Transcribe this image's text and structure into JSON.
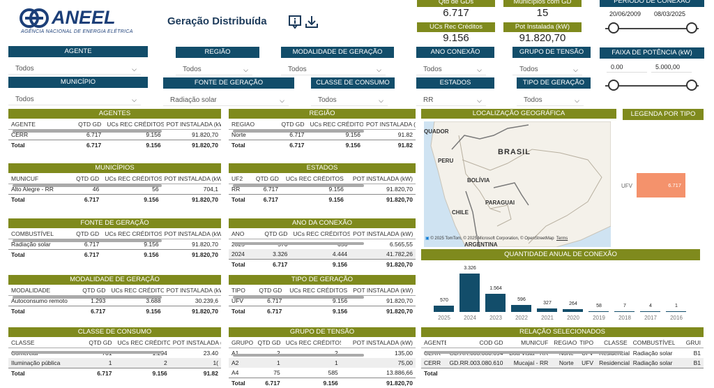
{
  "header": {
    "logo_text": "ANEEL",
    "logo_sub": "AGÊNCIA NACIONAL DE ENERGIA ELÉTRICA",
    "title": "Geração Distribuída"
  },
  "kpis": {
    "qtd_gds": {
      "label": "Qtd de GDs",
      "value": "6.717"
    },
    "municipios": {
      "label": "Municípios com GD",
      "value": "15"
    },
    "ucs": {
      "label": "UCs Rec Créditos",
      "value": "9.156"
    },
    "pot": {
      "label": "Pot Instalada (kW)",
      "value": "91.820,70"
    }
  },
  "periodo": {
    "label": "PERÍODO DE CONEXÃO",
    "start": "20/06/2009",
    "end": "08/03/2025"
  },
  "faixa": {
    "label": "FAIXA DE POTÊNCIA (kW)",
    "min": "0.00",
    "max": "5.000,00"
  },
  "filters": {
    "agente": {
      "label": "AGENTE",
      "value": "Todos"
    },
    "regiao": {
      "label": "REGIÃO",
      "value": "Todos"
    },
    "modalidade": {
      "label": "MODALIDADE DE GERAÇÃO",
      "value": "Todos"
    },
    "ano": {
      "label": "ANO CONEXÃO",
      "value": "Todos"
    },
    "grupo": {
      "label": "GRUPO DE TENSÃO",
      "value": "Todos"
    },
    "municipio": {
      "label": "MUNICÍPIO",
      "value": "Todos"
    },
    "fonte": {
      "label": "FONTE DE GERAÇÃO",
      "value": "Radiação solar"
    },
    "classe": {
      "label": "CLASSE DE CONSUMO",
      "value": "Todos"
    },
    "estados": {
      "label": "ESTADOS",
      "value": "RR"
    },
    "tipo": {
      "label": "TIPO DE GERAÇÃO",
      "value": "Todos"
    }
  },
  "tables": {
    "agentes": {
      "title": "AGENTES",
      "cols": [
        "AGENTE",
        "QTD GD",
        "UCs REC CRÉDITOS",
        "POT INSTALADA (kW)"
      ],
      "rows": [
        [
          "CERR",
          "6.717",
          "9.156",
          "91.820,70"
        ]
      ],
      "total": [
        "Total",
        "6.717",
        "9.156",
        "91.820,70"
      ]
    },
    "regiao": {
      "title": "REGIÃO",
      "cols": [
        "REGIAO",
        "QTD GD",
        "UCs REC CRÉDITOS",
        "POT INSTALADA (k"
      ],
      "rows": [
        [
          "Norte",
          "6.717",
          "9.156",
          "91.82"
        ]
      ],
      "total": [
        "Total",
        "6.717",
        "9.156",
        "91.82"
      ]
    },
    "municipios": {
      "title": "MUNICÍPIOS",
      "cols": [
        "MUNICUF",
        "QTD GD",
        "UCs REC CRÉDITOS",
        "POT INSTALADA (kW)"
      ],
      "rows": [
        [
          "Alto Alegre - RR",
          "46",
          "56",
          "704,1"
        ]
      ],
      "total": [
        "Total",
        "6.717",
        "9.156",
        "91.820,70"
      ]
    },
    "estados": {
      "title": "ESTADOS",
      "cols": [
        "UF2",
        "QTD GD",
        "UCs REC CRÉDITOS",
        "POT INSTALADA (kW)"
      ],
      "rows": [
        [
          "RR",
          "6.717",
          "9.156",
          "91.820,70"
        ]
      ],
      "total": [
        "Total",
        "6.717",
        "9.156",
        "91.820,70"
      ]
    },
    "fonte": {
      "title": "FONTE DE GERAÇÃO",
      "cols": [
        "COMBUSTÍVEL",
        "QTD GD",
        "UCs REC CRÉDITOS",
        "POT INSTALADA (kW)"
      ],
      "rows": [
        [
          "Radiação solar",
          "6.717",
          "9.156",
          "91.820,70"
        ]
      ],
      "total": [
        "Total",
        "6.717",
        "9.156",
        "91.820,70"
      ]
    },
    "ano": {
      "title": "ANO DA CONEXÃO",
      "cols": [
        "ANO",
        "QTD GD",
        "UCs REC CRÉDITOS",
        "POT INSTALADA (kW)"
      ],
      "rows": [
        [
          "2025",
          "570",
          "656",
          "6.565,55"
        ],
        [
          "2024",
          "3.326",
          "4.444",
          "41.782,26"
        ]
      ],
      "total": [
        "Total",
        "6.717",
        "9.156",
        "91.820,70"
      ]
    },
    "modalidade": {
      "title": "MODALIDADE DE GERAÇÃO",
      "cols": [
        "MODALIDADE",
        "QTD GD",
        "UCs REC CRÉDITOS",
        "POT INSTALADA (kW)"
      ],
      "rows": [
        [
          "Autoconsumo remoto",
          "1.293",
          "3.688",
          "30.239,6"
        ]
      ],
      "total": [
        "Total",
        "6.717",
        "9.156",
        "91.820,70"
      ]
    },
    "tipo": {
      "title": "TIPO DE GERAÇÃO",
      "cols": [
        "TIPO",
        "QTD GD",
        "UCs REC CRÉDITOS",
        "POT INSTALADA (kW)"
      ],
      "rows": [
        [
          "UFV",
          "6.717",
          "9.156",
          "91.820,70"
        ]
      ],
      "total": [
        "Total",
        "6.717",
        "9.156",
        "91.820,70"
      ]
    },
    "classe": {
      "title": "CLASSE DE CONSUMO",
      "cols": [
        "CLASSE",
        "QTD GD",
        "UCs REC CRÉDITOS",
        "POT INSTALADA (k"
      ],
      "rows": [
        [
          "Comercial",
          "701",
          "1.294",
          "23.40"
        ],
        [
          "Iluminação pública",
          "1",
          "2",
          "1("
        ]
      ],
      "total": [
        "Total",
        "6.717",
        "9.156",
        "91.82"
      ]
    },
    "grupo": {
      "title": "GRUPO DE TENSÃO",
      "cols": [
        "GRUPO",
        "QTD GD",
        "UCs REC CRÉDITOS",
        "POT INSTALADA (kW)"
      ],
      "rows": [
        [
          "A1",
          "2",
          "2",
          "135,00"
        ],
        [
          "A2",
          "1",
          "1",
          "75,00"
        ],
        [
          "A4",
          "75",
          "585",
          "13.886,66"
        ]
      ],
      "total": [
        "Total",
        "6.717",
        "9.156",
        "91.820,70"
      ]
    },
    "relacao": {
      "title": "RELAÇÃO SELECIONADOS",
      "cols": [
        "AGENTE",
        "COD GD",
        "MUNICUF",
        "REGIAO",
        "TIPO",
        "CLASSE",
        "COMBUSTÍVEL",
        "GRUI"
      ],
      "rows": [
        [
          "CERR",
          "GD.RR.003.080.694",
          "Boa Vista - RR",
          "Norte",
          "UFV",
          "Residencial",
          "Radiação solar",
          "B1"
        ],
        [
          "CERR",
          "GD.RR.003.080.610",
          "Mucajaí - RR",
          "Norte",
          "UFV",
          "Residencial",
          "Radiação solar",
          "B1"
        ]
      ],
      "total": [
        "Total",
        "",
        "",
        "",
        "",
        "",
        "",
        ""
      ]
    }
  },
  "map": {
    "title": "LOCALIZAÇÃO GEOGRÁFICA",
    "labels": {
      "brasil": "BRASIL",
      "peru": "PERU",
      "bolivia": "BOLÍVIA",
      "paraguai": "PARAGUAI",
      "chile": "CHILE",
      "argentina": "ARGENTINA",
      "equador": "QUADOR"
    },
    "attribution": "© 2025 TomTom, © 2025 Microsoft Corporation, © OpenStreetMap",
    "terms": "Terms"
  },
  "legend": {
    "title": "LEGENDA POR TIPO",
    "label": "UFV",
    "value": "6.717",
    "color": "#f4926c"
  },
  "chart_data": {
    "type": "bar",
    "title": "QUANTIDADE ANUAL DE CONEXÃO",
    "categories": [
      "2025",
      "2024",
      "2023",
      "2022",
      "2021",
      "2020",
      "2019",
      "2018",
      "2017",
      "2016"
    ],
    "values": [
      570,
      3326,
      1564,
      596,
      327,
      264,
      58,
      7,
      4,
      1
    ],
    "value_labels": [
      "570",
      "3.326",
      "1.564",
      "596",
      "327",
      "264",
      "58",
      "7",
      "4",
      "1"
    ],
    "bar_color": "#124d6a",
    "ylim": [
      0,
      3326
    ]
  }
}
